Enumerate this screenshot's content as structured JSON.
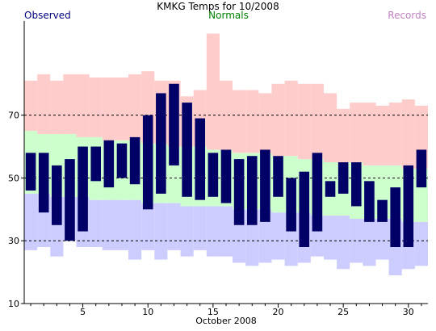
{
  "chart_data": {
    "type": "bar",
    "title": "KMKG Temps for 10/2008",
    "xlabel": "October 2008",
    "ylabel": "",
    "xlim": [
      0.5,
      31.5
    ],
    "ylim": [
      10,
      100
    ],
    "grid": "dashed lines at 30, 50 and 70",
    "y_ticks": [
      10,
      30,
      50,
      70
    ],
    "x_ticks": [
      5,
      10,
      15,
      20,
      25,
      30
    ],
    "legend": [
      {
        "name": "Observed",
        "position": "top-left",
        "color": "#000080"
      },
      {
        "name": "Normals",
        "position": "top-center",
        "color": "#008000"
      },
      {
        "name": "Records",
        "position": "top-right",
        "color": "#c080c0"
      }
    ],
    "colors": {
      "observed": "#000066",
      "normal_band": "#ccffcc",
      "record_high_band": "#ffcccc",
      "record_low_band": "#ccccff",
      "grid": "#000000"
    },
    "days": [
      1,
      2,
      3,
      4,
      5,
      6,
      7,
      8,
      9,
      10,
      11,
      12,
      13,
      14,
      15,
      16,
      17,
      18,
      19,
      20,
      21,
      22,
      23,
      24,
      25,
      26,
      27,
      28,
      29,
      30,
      31
    ],
    "series": [
      {
        "name": "Observed",
        "high": [
          58,
          58,
          54,
          56,
          60,
          60,
          62,
          61,
          63,
          70,
          77,
          80,
          74,
          69,
          58,
          59,
          56,
          57,
          59,
          57,
          50,
          52,
          58,
          49,
          55,
          55,
          49,
          43,
          47,
          54,
          59
        ],
        "low": [
          46,
          39,
          35,
          30,
          33,
          49,
          47,
          50,
          48,
          40,
          45,
          54,
          44,
          43,
          44,
          42,
          35,
          35,
          36,
          44,
          33,
          28,
          33,
          44,
          45,
          41,
          36,
          36,
          28,
          28,
          47
        ]
      },
      {
        "name": "Normals",
        "high": [
          65,
          64,
          64,
          64,
          63,
          63,
          62,
          62,
          62,
          61,
          61,
          60,
          60,
          60,
          59,
          59,
          58,
          58,
          58,
          57,
          57,
          56,
          56,
          55,
          55,
          55,
          54,
          54,
          54,
          53,
          53
        ],
        "low": [
          45,
          45,
          44,
          44,
          44,
          43,
          43,
          43,
          43,
          42,
          42,
          42,
          41,
          41,
          41,
          41,
          40,
          40,
          40,
          39,
          39,
          39,
          38,
          38,
          38,
          37,
          37,
          37,
          37,
          36,
          36
        ]
      },
      {
        "name": "Records",
        "high": [
          81,
          83,
          81,
          83,
          83,
          82,
          82,
          82,
          83,
          84,
          81,
          81,
          76,
          78,
          96,
          81,
          78,
          78,
          77,
          80,
          81,
          80,
          80,
          77,
          72,
          74,
          74,
          73,
          74,
          75,
          73
        ],
        "low": [
          27,
          28,
          25,
          30,
          28,
          28,
          27,
          27,
          24,
          27,
          24,
          27,
          25,
          27,
          25,
          25,
          23,
          22,
          23,
          24,
          22,
          23,
          25,
          24,
          21,
          23,
          22,
          24,
          19,
          21,
          22
        ]
      }
    ]
  }
}
